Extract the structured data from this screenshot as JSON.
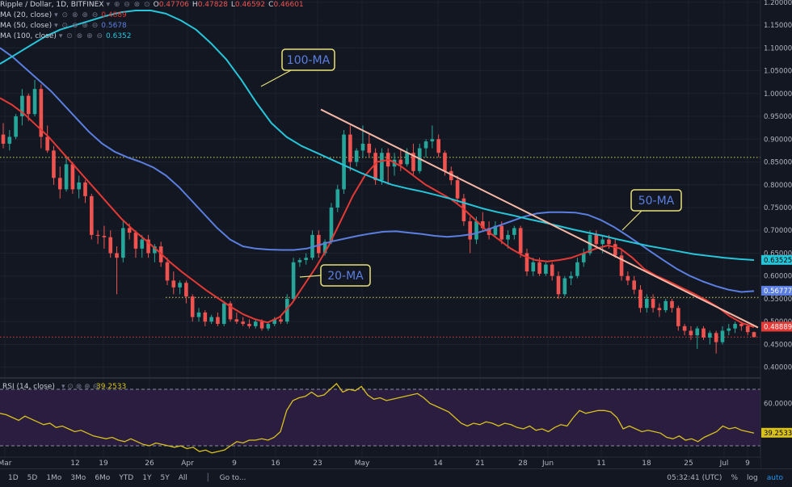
{
  "header": {
    "symbol_title": "Ripple / Dollar, 1D, BITFINEX",
    "ohlc": [
      {
        "k": "O",
        "v": "0.47706"
      },
      {
        "k": "H",
        "v": "0.47828"
      },
      {
        "k": "L",
        "v": "0.46592"
      },
      {
        "k": "C",
        "v": "0.46601"
      }
    ]
  },
  "indicators": [
    {
      "label": "MA (20, close)",
      "value": "0.4889",
      "color": "#e53935"
    },
    {
      "label": "MA (50, close)",
      "value": "0.5678",
      "color": "#5b7fe0"
    },
    {
      "label": "MA (100, close)",
      "value": "0.6352",
      "color": "#26c6da"
    }
  ],
  "rsi_legend": {
    "label": "RSI (14, close)",
    "value": "39.2533",
    "color": "#d9c21c"
  },
  "annotations": [
    {
      "text": "100-MA",
      "color": "#5b7fe0"
    },
    {
      "text": "50-MA",
      "color": "#5b7fe0"
    },
    {
      "text": "20-MA",
      "color": "#5b7fe0"
    }
  ],
  "price_badges": [
    {
      "text": "0.63525",
      "color": "#26c6da",
      "fg": "#000000"
    },
    {
      "text": "0.56777",
      "color": "#5b7fe0",
      "fg": "#ffffff"
    },
    {
      "text": "0.48889",
      "color": "#e53935",
      "fg": "#ffffff"
    }
  ],
  "rsi_badges": [
    {
      "text": "60.0000",
      "value": 60
    },
    {
      "text": "39.2533",
      "value": 39.2533
    }
  ],
  "chart_data": {
    "type": "line",
    "title": "Ripple / Dollar, 1D, BITFINEX",
    "x_tick_labels": [
      "Mar",
      "12",
      "19",
      "26",
      "Apr",
      "9",
      "16",
      "23",
      "May",
      "14",
      "21",
      "28",
      "Jun",
      "11",
      "18",
      "25",
      "Jul",
      "9"
    ],
    "y_tick_labels": [
      "1.20000",
      "1.15000",
      "1.10000",
      "1.05000",
      "1.00000",
      "0.95000",
      "0.90000",
      "0.85000",
      "0.80000",
      "0.75000",
      "0.70000",
      "0.65000",
      "0.60000",
      "0.55000",
      "0.50000",
      "0.45000",
      "0.40000"
    ],
    "ylim": [
      0.38,
      1.205
    ],
    "candles_ohlc": [
      [
        0.91,
        0.935,
        0.88,
        0.89
      ],
      [
        0.89,
        0.92,
        0.875,
        0.905
      ],
      [
        0.905,
        0.955,
        0.9,
        0.95
      ],
      [
        0.95,
        1.01,
        0.93,
        0.995
      ],
      [
        0.995,
        1.0,
        0.94,
        0.955
      ],
      [
        0.955,
        1.03,
        0.95,
        1.01
      ],
      [
        1.01,
        1.02,
        0.88,
        0.905
      ],
      [
        0.905,
        0.93,
        0.87,
        0.875
      ],
      [
        0.875,
        0.885,
        0.8,
        0.815
      ],
      [
        0.815,
        0.84,
        0.77,
        0.79
      ],
      [
        0.79,
        0.86,
        0.785,
        0.845
      ],
      [
        0.845,
        0.85,
        0.78,
        0.79
      ],
      [
        0.79,
        0.82,
        0.77,
        0.805
      ],
      [
        0.805,
        0.81,
        0.76,
        0.775
      ],
      [
        0.775,
        0.78,
        0.68,
        0.69
      ],
      [
        0.69,
        0.7,
        0.67,
        0.688
      ],
      [
        0.688,
        0.71,
        0.66,
        0.685
      ],
      [
        0.685,
        0.7,
        0.64,
        0.65
      ],
      [
        0.65,
        0.665,
        0.56,
        0.64
      ],
      [
        0.64,
        0.72,
        0.63,
        0.705
      ],
      [
        0.705,
        0.715,
        0.68,
        0.695
      ],
      [
        0.695,
        0.7,
        0.64,
        0.66
      ],
      [
        0.66,
        0.69,
        0.64,
        0.68
      ],
      [
        0.68,
        0.69,
        0.64,
        0.65
      ],
      [
        0.65,
        0.67,
        0.63,
        0.665
      ],
      [
        0.665,
        0.675,
        0.62,
        0.63
      ],
      [
        0.63,
        0.64,
        0.58,
        0.59
      ],
      [
        0.59,
        0.61,
        0.56,
        0.575
      ],
      [
        0.575,
        0.59,
        0.56,
        0.585
      ],
      [
        0.585,
        0.59,
        0.54,
        0.555
      ],
      [
        0.555,
        0.56,
        0.5,
        0.51
      ],
      [
        0.51,
        0.53,
        0.5,
        0.52
      ],
      [
        0.52,
        0.525,
        0.49,
        0.5
      ],
      [
        0.5,
        0.515,
        0.495,
        0.51
      ],
      [
        0.51,
        0.52,
        0.49,
        0.495
      ],
      [
        0.495,
        0.545,
        0.49,
        0.54
      ],
      [
        0.54,
        0.545,
        0.5,
        0.505
      ],
      [
        0.505,
        0.52,
        0.495,
        0.5
      ],
      [
        0.5,
        0.51,
        0.49,
        0.495
      ],
      [
        0.495,
        0.505,
        0.485,
        0.49
      ],
      [
        0.49,
        0.505,
        0.485,
        0.5
      ],
      [
        0.5,
        0.505,
        0.48,
        0.485
      ],
      [
        0.485,
        0.5,
        0.48,
        0.495
      ],
      [
        0.495,
        0.51,
        0.49,
        0.505
      ],
      [
        0.505,
        0.515,
        0.495,
        0.5
      ],
      [
        0.5,
        0.56,
        0.495,
        0.55
      ],
      [
        0.55,
        0.64,
        0.545,
        0.63
      ],
      [
        0.63,
        0.64,
        0.62,
        0.635
      ],
      [
        0.635,
        0.65,
        0.625,
        0.64
      ],
      [
        0.64,
        0.7,
        0.635,
        0.69
      ],
      [
        0.69,
        0.7,
        0.64,
        0.65
      ],
      [
        0.65,
        0.68,
        0.645,
        0.675
      ],
      [
        0.675,
        0.76,
        0.67,
        0.75
      ],
      [
        0.75,
        0.8,
        0.74,
        0.79
      ],
      [
        0.79,
        0.92,
        0.78,
        0.91
      ],
      [
        0.91,
        0.93,
        0.83,
        0.85
      ],
      [
        0.85,
        0.88,
        0.84,
        0.875
      ],
      [
        0.875,
        0.93,
        0.86,
        0.89
      ],
      [
        0.89,
        0.91,
        0.86,
        0.87
      ],
      [
        0.87,
        0.88,
        0.8,
        0.81
      ],
      [
        0.81,
        0.88,
        0.8,
        0.87
      ],
      [
        0.87,
        0.88,
        0.8,
        0.84
      ],
      [
        0.84,
        0.87,
        0.82,
        0.855
      ],
      [
        0.855,
        0.88,
        0.83,
        0.845
      ],
      [
        0.845,
        0.88,
        0.84,
        0.87
      ],
      [
        0.87,
        0.89,
        0.82,
        0.83
      ],
      [
        0.83,
        0.89,
        0.825,
        0.88
      ],
      [
        0.88,
        0.9,
        0.86,
        0.895
      ],
      [
        0.895,
        0.93,
        0.88,
        0.9
      ],
      [
        0.9,
        0.91,
        0.86,
        0.87
      ],
      [
        0.87,
        0.875,
        0.82,
        0.83
      ],
      [
        0.83,
        0.84,
        0.8,
        0.81
      ],
      [
        0.81,
        0.82,
        0.76,
        0.77
      ],
      [
        0.77,
        0.78,
        0.71,
        0.72
      ],
      [
        0.72,
        0.73,
        0.65,
        0.68
      ],
      [
        0.68,
        0.73,
        0.67,
        0.72
      ],
      [
        0.72,
        0.74,
        0.7,
        0.705
      ],
      [
        0.705,
        0.72,
        0.68,
        0.69
      ],
      [
        0.69,
        0.72,
        0.685,
        0.71
      ],
      [
        0.71,
        0.72,
        0.67,
        0.68
      ],
      [
        0.68,
        0.7,
        0.66,
        0.69
      ],
      [
        0.69,
        0.71,
        0.68,
        0.705
      ],
      [
        0.705,
        0.71,
        0.64,
        0.65
      ],
      [
        0.65,
        0.66,
        0.6,
        0.61
      ],
      [
        0.61,
        0.64,
        0.6,
        0.63
      ],
      [
        0.63,
        0.64,
        0.6,
        0.605
      ],
      [
        0.605,
        0.63,
        0.6,
        0.625
      ],
      [
        0.625,
        0.63,
        0.59,
        0.6
      ],
      [
        0.6,
        0.61,
        0.55,
        0.56
      ],
      [
        0.56,
        0.6,
        0.555,
        0.595
      ],
      [
        0.595,
        0.61,
        0.58,
        0.6
      ],
      [
        0.6,
        0.64,
        0.595,
        0.63
      ],
      [
        0.63,
        0.66,
        0.62,
        0.65
      ],
      [
        0.65,
        0.7,
        0.645,
        0.69
      ],
      [
        0.69,
        0.7,
        0.66,
        0.67
      ],
      [
        0.67,
        0.69,
        0.65,
        0.68
      ],
      [
        0.68,
        0.69,
        0.66,
        0.67
      ],
      [
        0.67,
        0.68,
        0.64,
        0.645
      ],
      [
        0.645,
        0.66,
        0.59,
        0.6
      ],
      [
        0.6,
        0.61,
        0.58,
        0.59
      ],
      [
        0.59,
        0.6,
        0.56,
        0.57
      ],
      [
        0.57,
        0.58,
        0.52,
        0.53
      ],
      [
        0.53,
        0.56,
        0.52,
        0.55
      ],
      [
        0.55,
        0.56,
        0.52,
        0.53
      ],
      [
        0.53,
        0.54,
        0.51,
        0.525
      ],
      [
        0.525,
        0.55,
        0.52,
        0.545
      ],
      [
        0.545,
        0.55,
        0.52,
        0.53
      ],
      [
        0.53,
        0.535,
        0.48,
        0.49
      ],
      [
        0.49,
        0.495,
        0.47,
        0.48
      ],
      [
        0.48,
        0.49,
        0.46,
        0.47
      ],
      [
        0.47,
        0.49,
        0.44,
        0.485
      ],
      [
        0.485,
        0.49,
        0.46,
        0.465
      ],
      [
        0.465,
        0.48,
        0.45,
        0.475
      ],
      [
        0.475,
        0.48,
        0.43,
        0.455
      ],
      [
        0.455,
        0.49,
        0.45,
        0.48
      ],
      [
        0.48,
        0.495,
        0.47,
        0.485
      ],
      [
        0.485,
        0.5,
        0.475,
        0.495
      ],
      [
        0.495,
        0.5,
        0.48,
        0.49
      ],
      [
        0.49,
        0.495,
        0.47,
        0.477
      ],
      [
        0.477,
        0.478,
        0.466,
        0.466
      ]
    ],
    "series": [
      {
        "name": "MA (20, close)",
        "color": "#e53935",
        "values": [
          0.99,
          0.975,
          0.955,
          0.93,
          0.905,
          0.875,
          0.845,
          0.815,
          0.785,
          0.755,
          0.725,
          0.7,
          0.678,
          0.655,
          0.63,
          0.608,
          0.588,
          0.568,
          0.55,
          0.532,
          0.516,
          0.505,
          0.498,
          0.51,
          0.54,
          0.58,
          0.62,
          0.665,
          0.72,
          0.775,
          0.82,
          0.85,
          0.855,
          0.84,
          0.82,
          0.8,
          0.785,
          0.77,
          0.75,
          0.725,
          0.7,
          0.68,
          0.66,
          0.645,
          0.635,
          0.632,
          0.635,
          0.64,
          0.65,
          0.66,
          0.667,
          0.66,
          0.64,
          0.615,
          0.6,
          0.588,
          0.575,
          0.562,
          0.548,
          0.532,
          0.512,
          0.497,
          0.488
        ]
      },
      {
        "name": "MA (50, close)",
        "color": "#5b7fe0",
        "values": [
          1.1,
          1.08,
          1.055,
          1.03,
          1.005,
          0.975,
          0.945,
          0.915,
          0.89,
          0.872,
          0.86,
          0.85,
          0.838,
          0.82,
          0.795,
          0.765,
          0.735,
          0.705,
          0.68,
          0.665,
          0.66,
          0.658,
          0.657,
          0.657,
          0.66,
          0.668,
          0.676,
          0.682,
          0.688,
          0.693,
          0.697,
          0.698,
          0.695,
          0.692,
          0.688,
          0.686,
          0.688,
          0.692,
          0.7,
          0.71,
          0.72,
          0.73,
          0.737,
          0.74,
          0.74,
          0.739,
          0.734,
          0.723,
          0.708,
          0.69,
          0.671,
          0.652,
          0.633,
          0.615,
          0.6,
          0.588,
          0.578,
          0.57,
          0.565,
          0.567
        ]
      },
      {
        "name": "MA (100, close)",
        "color": "#26c6da",
        "values": [
          1.065,
          1.085,
          1.105,
          1.125,
          1.14,
          1.15,
          1.16,
          1.17,
          1.178,
          1.182,
          1.182,
          1.175,
          1.16,
          1.14,
          1.11,
          1.075,
          1.03,
          0.98,
          0.935,
          0.905,
          0.885,
          0.87,
          0.855,
          0.84,
          0.825,
          0.812,
          0.8,
          0.792,
          0.785,
          0.777,
          0.768,
          0.758,
          0.748,
          0.74,
          0.733,
          0.725,
          0.718,
          0.71,
          0.702,
          0.695,
          0.688,
          0.68,
          0.673,
          0.666,
          0.66,
          0.654,
          0.648,
          0.644,
          0.64,
          0.637,
          0.635
        ]
      }
    ],
    "trendline": {
      "from": [
        397,
        0.965
      ],
      "to": [
        938,
        0.487
      ],
      "color": "#f4b7a6"
    },
    "hlines": [
      {
        "y": 0.86,
        "color": "#d9d24a",
        "style": "dotted"
      },
      {
        "y": 0.553,
        "color": "#d9d24a",
        "style": "dotted"
      },
      {
        "y": 0.466,
        "color": "#e53935",
        "style": "dotted"
      }
    ],
    "rsi": {
      "name": "RSI (14, close)",
      "ylim": [
        22,
        78
      ],
      "band": [
        30,
        70
      ],
      "values": [
        53,
        52,
        50,
        48,
        51,
        49,
        47,
        45,
        46,
        43,
        44,
        42,
        40,
        41,
        39,
        37,
        36,
        35,
        36,
        34,
        33,
        35,
        33,
        31,
        30,
        32,
        31,
        30,
        29,
        30,
        28,
        29,
        26,
        27,
        25,
        26,
        27,
        30,
        33,
        32,
        34,
        34,
        35,
        34,
        36,
        40,
        55,
        62,
        64,
        65,
        68,
        65,
        66,
        70,
        74,
        68,
        70,
        69,
        72,
        66,
        63,
        64,
        62,
        63,
        64,
        65,
        66,
        67,
        64,
        60,
        58,
        56,
        54,
        50,
        46,
        44,
        46,
        45,
        47,
        46,
        44,
        46,
        45,
        43,
        42,
        44,
        41,
        42,
        40,
        43,
        45,
        44,
        50,
        55,
        53,
        54,
        55,
        55,
        54,
        50,
        42,
        44,
        42,
        40,
        41,
        40,
        39,
        36,
        35,
        37,
        34,
        35,
        33,
        36,
        38,
        40,
        44,
        42,
        43,
        41,
        40,
        39
      ]
    }
  },
  "time_axis_labels": [
    "Mar",
    "12",
    "19",
    "26",
    "Apr",
    "9",
    "16",
    "23",
    "May",
    "14",
    "21",
    "28",
    "Jun",
    "11",
    "18",
    "25",
    "Jul",
    "9"
  ],
  "bottom_toolbar": {
    "ranges": [
      "1D",
      "5D",
      "1Mo",
      "3Mo",
      "6Mo",
      "YTD",
      "1Y",
      "5Y",
      "All"
    ],
    "goto": "Go to...",
    "clock": "05:32:41 (UTC)",
    "percent": "%",
    "log": "log",
    "auto": "auto"
  }
}
